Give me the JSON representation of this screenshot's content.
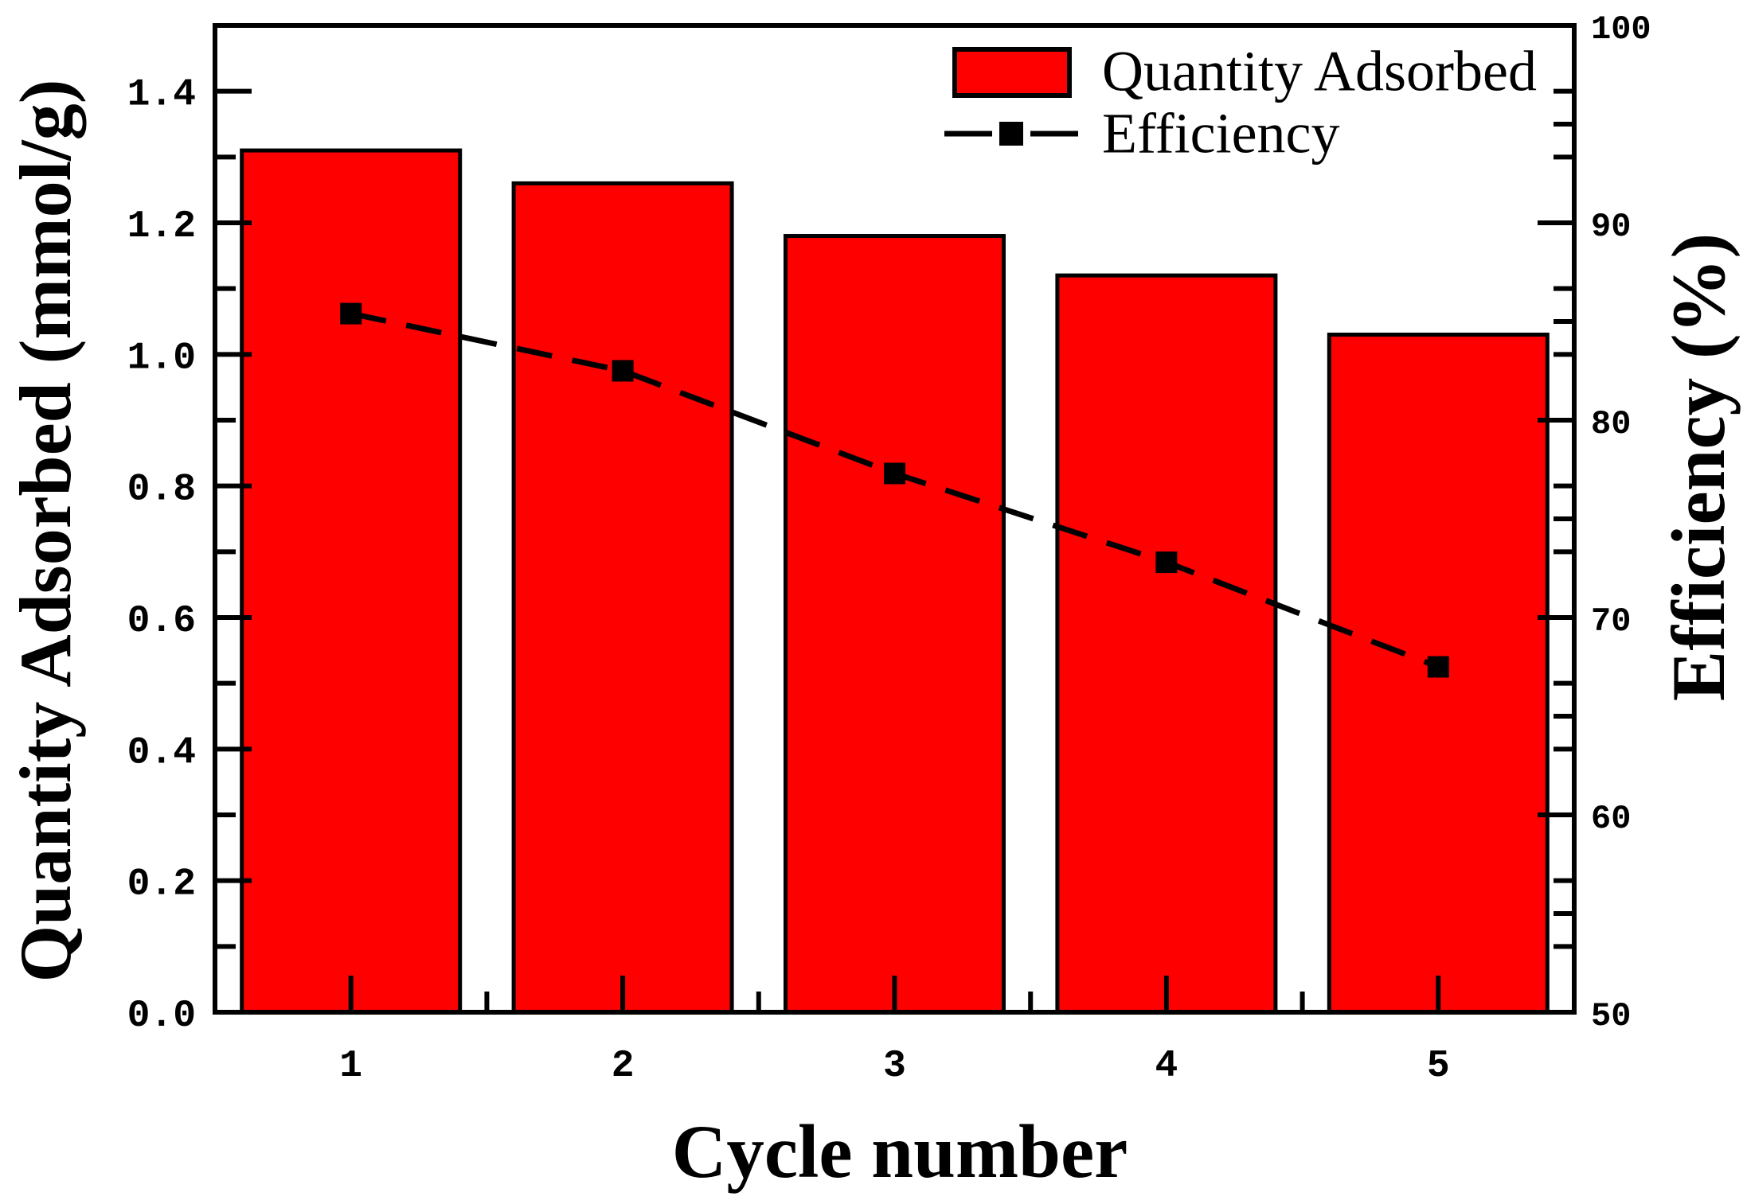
{
  "chart_data": {
    "type": "bar+line",
    "title": "",
    "categories": [
      "1",
      "2",
      "3",
      "4",
      "5"
    ],
    "series": [
      {
        "name": "Quantity Adsorbed",
        "type": "bar",
        "axis": "left",
        "values": [
          1.31,
          1.26,
          1.18,
          1.12,
          1.03
        ],
        "fill_color": "#ff0000",
        "border_color": "#000000"
      },
      {
        "name": "Efficiency",
        "type": "line",
        "axis": "right",
        "values": [
          85.4,
          82.5,
          77.3,
          72.8,
          67.5
        ],
        "line_color": "#000000",
        "line_style": "dashed",
        "marker": "filled-square"
      }
    ],
    "x_axis": {
      "label": "Cycle number",
      "tick_labels": [
        "1",
        "2",
        "3",
        "4",
        "5"
      ],
      "minor_ticks_at_half_positions": true
    },
    "left_axis": {
      "label": "Quantity Adsorbed (mmol/g)",
      "min": 0.0,
      "max": 1.5,
      "major_step": 0.2,
      "minor_step": 0.1,
      "tick_labels": [
        "0.0",
        "0.2",
        "0.4",
        "0.6",
        "0.8",
        "1.0",
        "1.2",
        "1.4"
      ]
    },
    "right_axis": {
      "label": "Efficiency (%)",
      "min": 50,
      "max": 100,
      "major_step": 10,
      "minor_offsets": [
        3.33,
        5,
        6.67
      ],
      "tick_labels": [
        "50",
        "60",
        "70",
        "80",
        "90",
        "100"
      ]
    },
    "legend": {
      "position": "top-right-inside",
      "items": [
        {
          "label": "Quantity Adsorbed",
          "swatch": "red-filled-rect"
        },
        {
          "label": "Efficiency",
          "swatch": "dash-square-dash"
        }
      ]
    },
    "grid": "off",
    "background": "#ffffff"
  }
}
